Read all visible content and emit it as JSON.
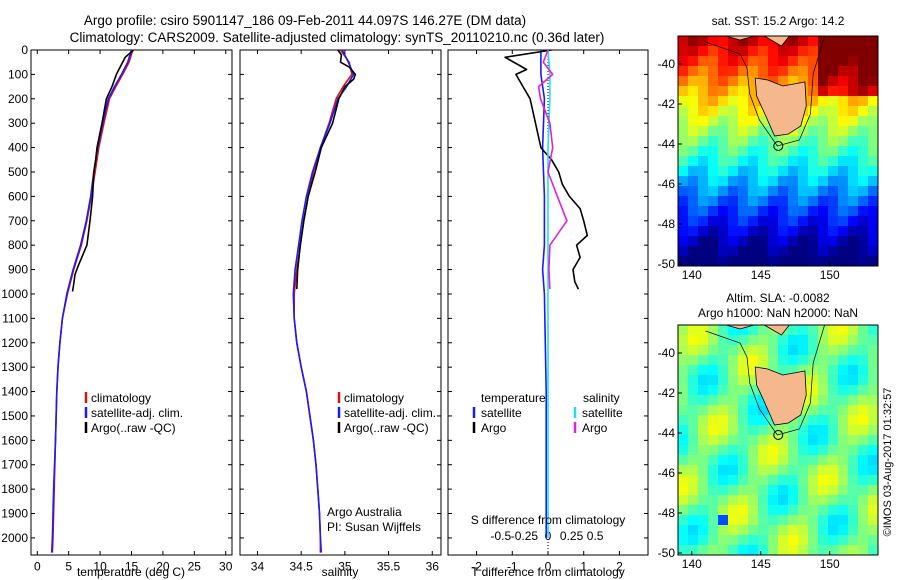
{
  "header": {
    "line1": "Argo profile: csiro 5901147_186 09-Feb-2011 44.097S 146.27E (DM data)",
    "line2": "Climatology: CARS2009. Satellite-adjusted climatology: synTS_20110210.nc (0.36d later)"
  },
  "credits": {
    "line1": "Argo Australia",
    "line2": "PI: Susan Wijffels",
    "stamp": "©IMOS 03-Aug-2017 01:32:57"
  },
  "colors": {
    "climatology": "#e01010",
    "satellite": "#1a1aff",
    "argo": "#000000",
    "argo_sal": "#e020e0",
    "sat_sal": "#20e0f0",
    "land": "#f5b88c"
  },
  "chart_data": [
    {
      "type": "line",
      "panel": "temperature",
      "xlabel": "temperature (deg C)",
      "ylabel": "",
      "xlim": [
        -1,
        31
      ],
      "ylim": [
        2070,
        0
      ],
      "y_reversed": true,
      "xticks": [
        "0",
        "5",
        "10",
        "15",
        "20",
        "25",
        "30"
      ],
      "yticks": [
        "0",
        "100",
        "200",
        "300",
        "400",
        "500",
        "600",
        "700",
        "800",
        "900",
        "1000",
        "1100",
        "1200",
        "1300",
        "1400",
        "1500",
        "1600",
        "1700",
        "1800",
        "1900",
        "2000"
      ],
      "legend": [
        "climatology",
        "satellite-adj. clim.",
        "Argo(..raw -QC)"
      ],
      "series": [
        {
          "name": "climatology",
          "color": "#e01010",
          "points": [
            [
              15.2,
              0
            ],
            [
              14.6,
              50
            ],
            [
              13.6,
              100
            ],
            [
              12.5,
              150
            ],
            [
              11.5,
              200
            ],
            [
              10.6,
              300
            ],
            [
              9.8,
              400
            ],
            [
              9.2,
              500
            ],
            [
              8.6,
              600
            ],
            [
              7.9,
              700
            ],
            [
              7.0,
              800
            ],
            [
              5.8,
              900
            ],
            [
              4.8,
              1000
            ],
            [
              4.0,
              1100
            ],
            [
              3.6,
              1200
            ],
            [
              3.3,
              1300
            ],
            [
              3.1,
              1400
            ],
            [
              2.9,
              1600
            ],
            [
              2.7,
              1800
            ],
            [
              2.5,
              2000
            ],
            [
              2.4,
              2060
            ]
          ]
        },
        {
          "name": "satellite-adj. clim.",
          "color": "#1a1aff",
          "points": [
            [
              15.0,
              0
            ],
            [
              14.4,
              50
            ],
            [
              13.4,
              100
            ],
            [
              12.3,
              150
            ],
            [
              11.3,
              200
            ],
            [
              10.4,
              300
            ],
            [
              9.6,
              400
            ],
            [
              9.0,
              500
            ],
            [
              8.5,
              600
            ],
            [
              7.8,
              700
            ],
            [
              6.9,
              800
            ],
            [
              5.7,
              900
            ],
            [
              4.7,
              1000
            ],
            [
              4.0,
              1100
            ],
            [
              3.6,
              1200
            ],
            [
              3.3,
              1300
            ],
            [
              3.1,
              1400
            ],
            [
              2.9,
              1600
            ],
            [
              2.6,
              1800
            ],
            [
              2.4,
              2000
            ],
            [
              2.3,
              2060
            ]
          ]
        },
        {
          "name": "Argo(..raw -QC)",
          "color": "#000000",
          "points": [
            [
              15.3,
              0
            ],
            [
              14.0,
              30
            ],
            [
              13.0,
              80
            ],
            [
              12.6,
              100
            ],
            [
              11.9,
              150
            ],
            [
              11.0,
              200
            ],
            [
              10.3,
              300
            ],
            [
              9.5,
              400
            ],
            [
              9.3,
              450
            ],
            [
              9.0,
              500
            ],
            [
              8.8,
              600
            ],
            [
              8.4,
              700
            ],
            [
              7.9,
              800
            ],
            [
              6.6,
              880
            ],
            [
              6.0,
              920
            ],
            [
              5.8,
              960
            ],
            [
              5.6,
              990
            ]
          ]
        }
      ]
    },
    {
      "type": "line",
      "panel": "salinity",
      "xlabel": "salinity",
      "ylabel": "",
      "xlim": [
        33.8,
        36.1
      ],
      "ylim": [
        2070,
        0
      ],
      "y_reversed": true,
      "xticks": [
        "34",
        "34.5",
        "35",
        "35.5",
        "36"
      ],
      "legend": [
        "climatology",
        "satellite-adj. clim.",
        "Argo(..raw -QC)"
      ],
      "series": [
        {
          "name": "climatology",
          "color": "#e01010",
          "points": [
            [
              34.95,
              0
            ],
            [
              35.05,
              50
            ],
            [
              35.08,
              100
            ],
            [
              34.98,
              150
            ],
            [
              34.9,
              200
            ],
            [
              34.82,
              300
            ],
            [
              34.72,
              400
            ],
            [
              34.64,
              500
            ],
            [
              34.58,
              600
            ],
            [
              34.53,
              700
            ],
            [
              34.49,
              800
            ],
            [
              34.45,
              900
            ],
            [
              34.42,
              1000
            ],
            [
              34.42,
              1100
            ],
            [
              34.45,
              1200
            ],
            [
              34.5,
              1300
            ],
            [
              34.56,
              1400
            ],
            [
              34.6,
              1500
            ],
            [
              34.64,
              1600
            ],
            [
              34.67,
              1700
            ],
            [
              34.69,
              1800
            ],
            [
              34.71,
              1900
            ],
            [
              34.72,
              2000
            ],
            [
              34.72,
              2060
            ]
          ]
        },
        {
          "name": "satellite-adj. clim.",
          "color": "#1a1aff",
          "points": [
            [
              34.97,
              0
            ],
            [
              35.04,
              50
            ],
            [
              35.1,
              100
            ],
            [
              35.02,
              150
            ],
            [
              34.92,
              200
            ],
            [
              34.83,
              300
            ],
            [
              34.72,
              400
            ],
            [
              34.63,
              500
            ],
            [
              34.56,
              600
            ],
            [
              34.51,
              700
            ],
            [
              34.47,
              800
            ],
            [
              34.43,
              900
            ],
            [
              34.41,
              1000
            ],
            [
              34.42,
              1100
            ],
            [
              34.45,
              1200
            ],
            [
              34.5,
              1300
            ],
            [
              34.56,
              1400
            ],
            [
              34.6,
              1500
            ],
            [
              34.64,
              1600
            ],
            [
              34.67,
              1700
            ],
            [
              34.69,
              1800
            ],
            [
              34.71,
              1900
            ],
            [
              34.72,
              2000
            ],
            [
              34.73,
              2060
            ]
          ]
        },
        {
          "name": "Argo(..raw -QC)",
          "color": "#000000",
          "points": [
            [
              34.92,
              0
            ],
            [
              34.96,
              20
            ],
            [
              34.95,
              50
            ],
            [
              35.05,
              70
            ],
            [
              35.12,
              100
            ],
            [
              35.1,
              120
            ],
            [
              35.0,
              150
            ],
            [
              34.93,
              200
            ],
            [
              34.86,
              300
            ],
            [
              34.73,
              400
            ],
            [
              34.66,
              500
            ],
            [
              34.58,
              600
            ],
            [
              34.53,
              700
            ],
            [
              34.49,
              800
            ],
            [
              34.46,
              900
            ],
            [
              34.45,
              980
            ]
          ]
        }
      ]
    },
    {
      "type": "line",
      "panel": "difference",
      "xlabel": "T difference from climatology",
      "xlabel_top": "S difference from climatology",
      "xlim": [
        -2.8,
        2.8
      ],
      "ylim": [
        2070,
        0
      ],
      "y_reversed": true,
      "xticks": [
        "-2",
        "-1",
        "0",
        "1",
        "2"
      ],
      "xticks_s": [
        "-0.5",
        "-0.25",
        "0",
        "0.25",
        "0.5"
      ],
      "legend": {
        "temperature_title": "temperature",
        "salinity_title": "salinity",
        "satellite": "satellite",
        "argo": "Argo"
      },
      "series": [
        {
          "name": "temperature satellite",
          "color": "#1a1aff",
          "points": [
            [
              -0.2,
              0
            ],
            [
              -0.2,
              100
            ],
            [
              -0.1,
              200
            ],
            [
              -0.15,
              400
            ],
            [
              -0.1,
              600
            ],
            [
              -0.1,
              800
            ],
            [
              -0.15,
              900
            ],
            [
              -0.1,
              1000
            ],
            [
              -0.05,
              1400
            ],
            [
              -0.05,
              2000
            ]
          ]
        },
        {
          "name": "temperature Argo",
          "color": "#000000",
          "points": [
            [
              0.1,
              0
            ],
            [
              -1.2,
              30
            ],
            [
              -0.6,
              80
            ],
            [
              -0.9,
              100
            ],
            [
              -0.7,
              150
            ],
            [
              -0.5,
              200
            ],
            [
              -0.35,
              300
            ],
            [
              -0.2,
              400
            ],
            [
              0.1,
              450
            ],
            [
              0.3,
              500
            ],
            [
              0.4,
              550
            ],
            [
              0.6,
              600
            ],
            [
              0.9,
              650
            ],
            [
              1.0,
              700
            ],
            [
              1.1,
              760
            ],
            [
              0.8,
              800
            ],
            [
              0.9,
              850
            ],
            [
              0.7,
              900
            ],
            [
              0.75,
              950
            ],
            [
              0.85,
              980
            ]
          ]
        },
        {
          "name": "salinity satellite",
          "color": "#20e0f0",
          "points": [
            [
              0.0,
              0
            ],
            [
              0.02,
              100
            ],
            [
              0.02,
              200
            ],
            [
              0.0,
              400
            ],
            [
              0.0,
              700
            ],
            [
              0.0,
              1000
            ],
            [
              0.0,
              1400
            ],
            [
              0.0,
              2000
            ]
          ]
        },
        {
          "name": "salinity Argo",
          "color": "#e020e0",
          "points": [
            [
              0.0,
              0
            ],
            [
              -0.05,
              50
            ],
            [
              0.05,
              100
            ],
            [
              -0.1,
              150
            ],
            [
              -0.08,
              200
            ],
            [
              0.02,
              300
            ],
            [
              0.05,
              400
            ],
            [
              0.0,
              500
            ],
            [
              0.1,
              600
            ],
            [
              0.2,
              700
            ],
            [
              0.02,
              800
            ],
            [
              0.01,
              900
            ],
            [
              0.02,
              980
            ]
          ]
        }
      ]
    },
    {
      "type": "heatmap",
      "panel": "sst-map",
      "title": "sat. SST: 15.2 Argo: 14.2",
      "xticks": [
        "140",
        "145",
        "150"
      ],
      "yticks": [
        "-40",
        "-42",
        "-44",
        "-46",
        "-48",
        "-50"
      ],
      "xlim": [
        139,
        153.5
      ],
      "ylim": [
        -50.1,
        -38.6
      ]
    },
    {
      "type": "heatmap",
      "panel": "sla-map",
      "title_line1": "Altim. SLA: -0.0082",
      "title_line2": "Argo h1000: NaN h2000: NaN",
      "xticks": [
        "140",
        "145",
        "150"
      ],
      "yticks": [
        "-40",
        "-42",
        "-44",
        "-46",
        "-48",
        "-50"
      ],
      "xlim": [
        139,
        153.5
      ],
      "ylim": [
        -50.1,
        -38.6
      ]
    }
  ]
}
